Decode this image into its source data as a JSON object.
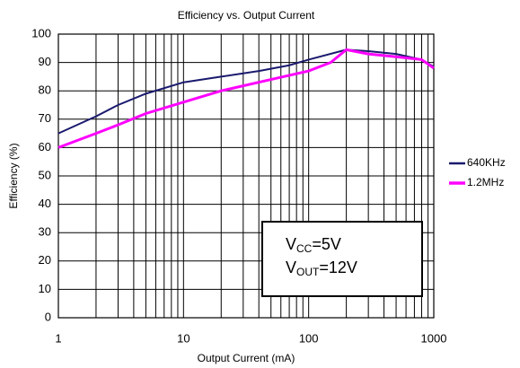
{
  "chart_data": {
    "type": "line",
    "title": "Efficiency vs. Output Current",
    "xlabel": "Output Current (mA)",
    "ylabel": "Efficiency (%)",
    "xscale": "log",
    "xlim": [
      1,
      1000
    ],
    "xticks": [
      1,
      10,
      100,
      1000
    ],
    "ylim": [
      0,
      100
    ],
    "yticks": [
      0,
      10,
      20,
      30,
      40,
      50,
      60,
      70,
      80,
      90,
      100
    ],
    "grid": true,
    "legend": "right",
    "series": [
      {
        "name": "640KHz",
        "color": "#1a1a6e",
        "x": [
          1,
          2,
          3,
          5,
          10,
          20,
          40,
          70,
          100,
          200,
          300,
          500,
          800,
          1000
        ],
        "values": [
          65,
          71,
          75,
          79,
          83,
          85,
          87,
          89,
          91,
          94.5,
          94,
          93,
          91,
          88.5
        ]
      },
      {
        "name": "1.2MHz",
        "color": "#ff00ff",
        "x": [
          1,
          2,
          3,
          5,
          10,
          20,
          50,
          100,
          150,
          200,
          300,
          500,
          800,
          1000
        ],
        "values": [
          60,
          65,
          68,
          72,
          76,
          80,
          84,
          87,
          90,
          94.5,
          93,
          92,
          91,
          88
        ]
      }
    ],
    "annotations": [
      {
        "main": "V",
        "sub": "CC",
        "rest": "=5V"
      },
      {
        "main": "V",
        "sub": "OUT",
        "rest": "=12V"
      }
    ]
  }
}
